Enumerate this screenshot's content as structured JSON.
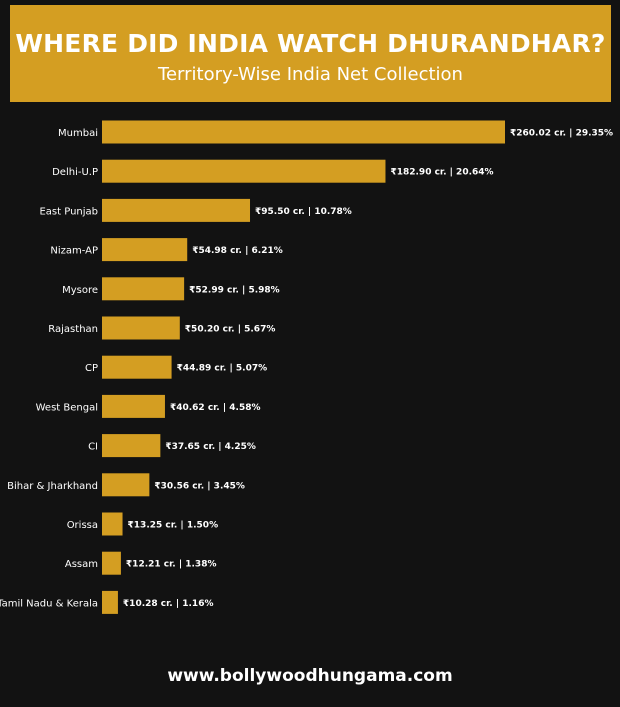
{
  "header": {
    "title": "WHERE DID INDIA WATCH DHURANDHAR?",
    "subtitle": "Territory-Wise India Net Collection"
  },
  "footer": {
    "website": "www.bollywoodhungama.com"
  },
  "colors": {
    "background": "#121212",
    "accent": "#d49e22",
    "text": "#ffffff"
  },
  "chart_data": {
    "type": "bar",
    "orientation": "horizontal",
    "title": "WHERE DID INDIA WATCH DHURANDHAR?",
    "subtitle": "Territory-Wise India Net Collection",
    "xlabel": "",
    "ylabel": "",
    "xlim": [
      0,
      260.02
    ],
    "grid": false,
    "legend": "none",
    "categories": [
      "Mumbai",
      "Delhi-U.P",
      "East Punjab",
      "Nizam-AP",
      "Mysore",
      "Rajasthan",
      "CP",
      "West Bengal",
      "CI",
      "Bihar & Jharkhand",
      "Orissa",
      "Assam",
      "Tamil Nadu & Kerala"
    ],
    "values": [
      260.02,
      182.9,
      95.5,
      54.98,
      52.99,
      50.2,
      44.89,
      40.62,
      37.65,
      30.56,
      13.25,
      12.21,
      10.28
    ],
    "data_labels": [
      "₹260.02 cr. | 29.35%",
      "₹182.90 cr. | 20.64%",
      "₹95.50 cr. | 10.78%",
      "₹54.98 cr. | 6.21%",
      "₹52.99 cr. | 5.98%",
      "₹50.20 cr. | 5.67%",
      "₹44.89 cr. | 5.07%",
      "₹40.62 cr. | 4.58%",
      "₹37.65 cr. | 4.25%",
      "₹30.56 cr. | 3.45%",
      "₹13.25 cr. | 1.50%",
      "₹12.21 cr. | 1.38%",
      "₹10.28 cr. | 1.16%"
    ]
  }
}
